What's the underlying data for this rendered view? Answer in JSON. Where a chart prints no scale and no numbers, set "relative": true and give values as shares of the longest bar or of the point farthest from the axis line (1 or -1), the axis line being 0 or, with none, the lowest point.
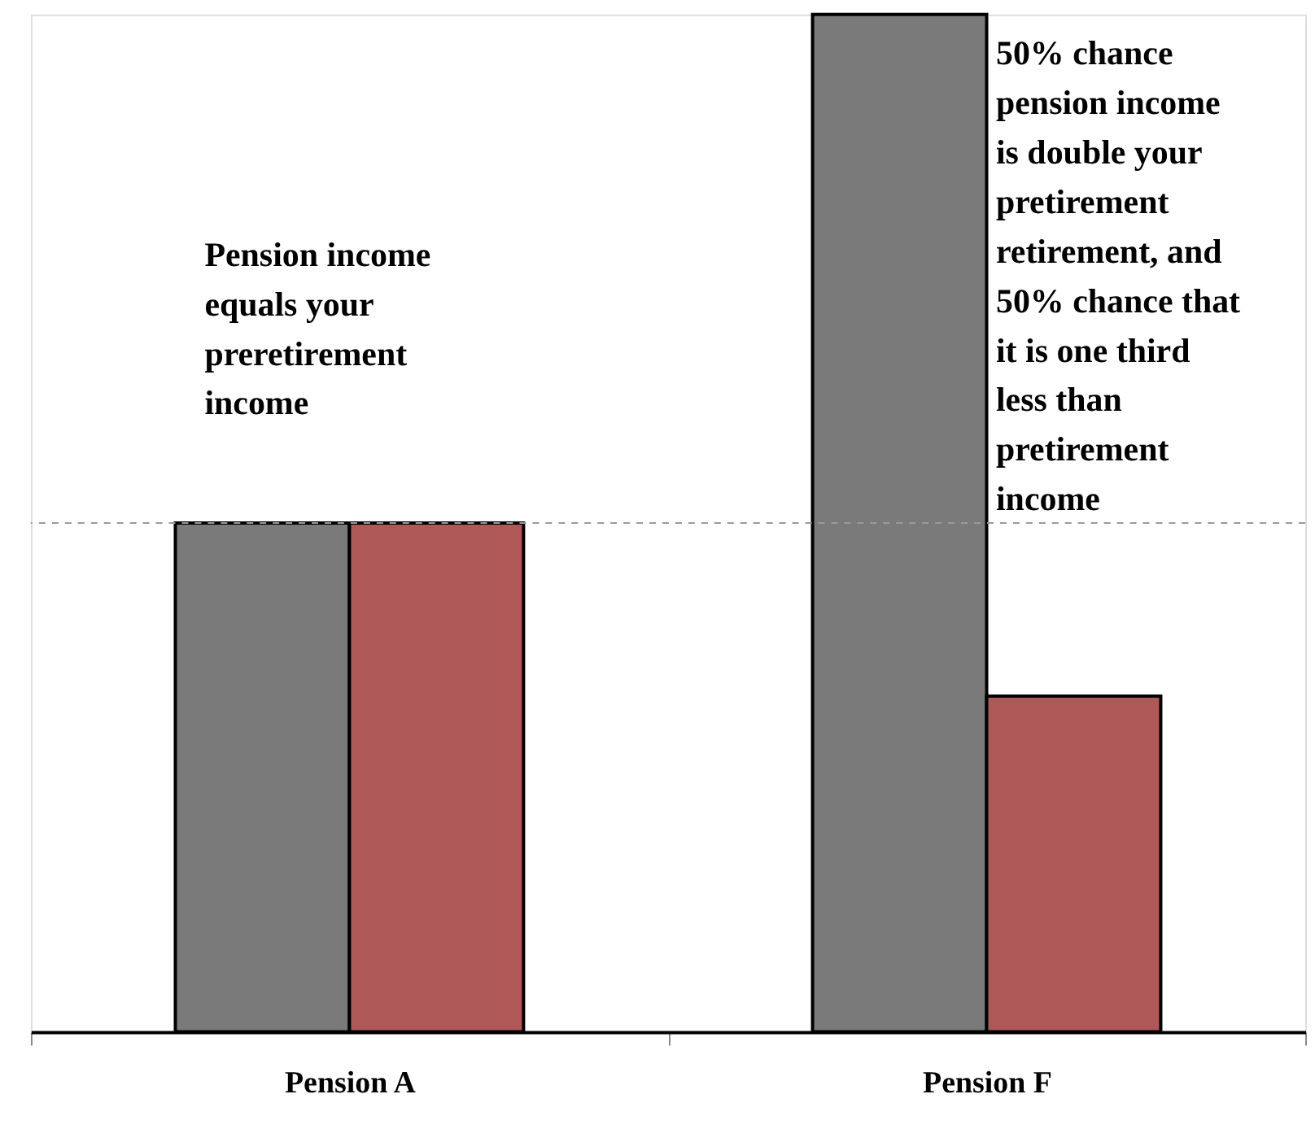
{
  "chart_data": {
    "type": "bar",
    "relative": true,
    "categories": [
      "Pension A",
      "Pension F"
    ],
    "series": [
      {
        "color": "#7a7a7a",
        "values": [
          0.5,
          1
        ]
      },
      {
        "color": "#ae5858",
        "values": [
          0.5,
          0.33
        ]
      }
    ],
    "ref_lines": [
      {
        "axis": "y",
        "value": 0.5,
        "color": "#9a9a9a",
        "line_style": "dashed"
      }
    ],
    "annotations": [
      "Pension income\nequals your\npreretirement\nincome",
      "50% chance\npension income\nis double your\npretirement\nretirement, and\n50% chance that\nit is one third\nless than\npretirement\nincome"
    ],
    "legend": false
  }
}
